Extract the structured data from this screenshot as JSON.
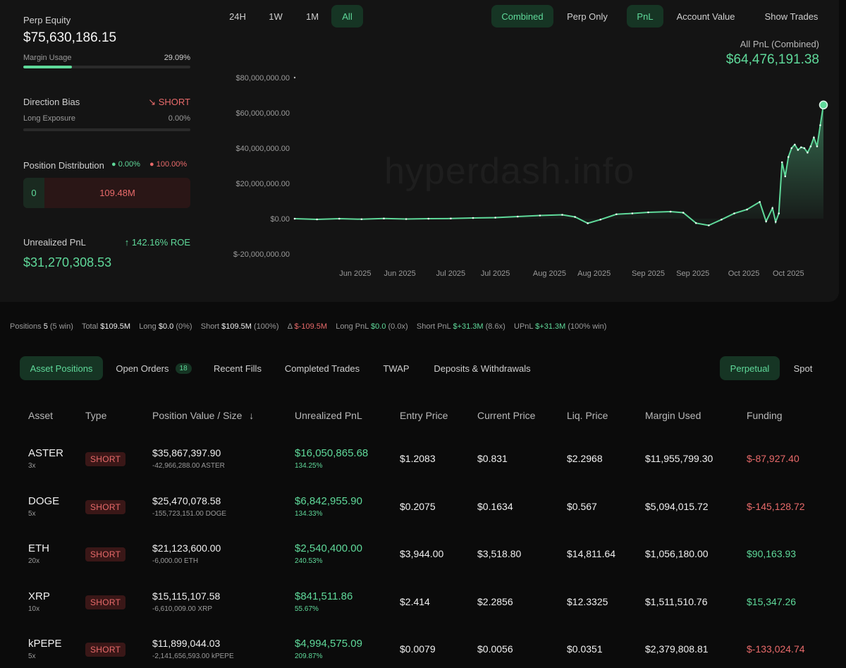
{
  "left": {
    "perp_equity_label": "Perp Equity",
    "perp_equity_value": "$75,630,186.15",
    "margin_usage_label": "Margin Usage",
    "margin_usage_value": "29.09%",
    "margin_usage_fraction": 0.2909,
    "direction_bias_label": "Direction Bias",
    "direction_bias_value": "SHORT",
    "long_exposure_label": "Long Exposure",
    "long_exposure_value": "0.00%",
    "long_exposure_fraction": 0.0,
    "position_distribution_label": "Position Distribution",
    "dist_long_pct": "0.00%",
    "dist_short_pct": "100.00%",
    "dist_long_value": "0",
    "dist_short_value": "109.48M",
    "unrealized_pnl_label": "Unrealized PnL",
    "roe": "142.16% ROE",
    "unrealized_pnl_value": "$31,270,308.53"
  },
  "chart_tabs": {
    "range": [
      "24H",
      "1W",
      "1M",
      "All"
    ],
    "range_active": "All",
    "mode": [
      "Combined",
      "Perp Only"
    ],
    "mode_active": "Combined",
    "metric": [
      "PnL",
      "Account Value"
    ],
    "metric_active": "PnL",
    "show_trades": "Show Trades"
  },
  "chart_header": {
    "label": "All PnL (Combined)",
    "value": "$64,476,191.38"
  },
  "watermark": "hyperdash.info",
  "chart_data": {
    "type": "area",
    "title": "",
    "xlabel": "",
    "ylabel": "",
    "ylim": [
      -20000000,
      80000000
    ],
    "y_ticks": [
      "$80,000,000.00",
      "$60,000,000.00",
      "$40,000,000.00",
      "$20,000,000.00",
      "$0.00",
      "$-20,000,000.00"
    ],
    "y_tick_values": [
      80000000,
      60000000,
      40000000,
      20000000,
      0,
      -20000000
    ],
    "x_tick_labels": [
      "Jun 2025",
      "Jun 2025",
      "Jul 2025",
      "Jul 2025",
      "Aug 2025",
      "Aug 2025",
      "Sep 2025",
      "Sep 2025",
      "Oct 2025",
      "Oct 2025"
    ],
    "x_tick_dates": [
      "2025-06-01",
      "2025-06-15",
      "2025-07-01",
      "2025-07-15",
      "2025-08-01",
      "2025-08-15",
      "2025-09-01",
      "2025-09-15",
      "2025-10-01",
      "2025-10-15"
    ],
    "x_range": [
      "2025-05-13",
      "2025-10-26"
    ],
    "grid": false,
    "color": "#5fd99a",
    "series": [
      {
        "x": [
          "2025-05-13",
          "2025-05-20",
          "2025-05-27",
          "2025-06-03",
          "2025-06-10",
          "2025-06-17",
          "2025-06-24",
          "2025-07-01",
          "2025-07-08",
          "2025-07-15",
          "2025-07-22",
          "2025-07-29",
          "2025-08-05",
          "2025-08-09",
          "2025-08-13",
          "2025-08-17",
          "2025-08-22",
          "2025-08-27",
          "2025-09-01",
          "2025-09-08",
          "2025-09-12",
          "2025-09-16",
          "2025-09-20",
          "2025-09-24",
          "2025-09-28",
          "2025-10-02",
          "2025-10-06",
          "2025-10-08",
          "2025-10-10",
          "2025-10-11",
          "2025-10-12",
          "2025-10-13",
          "2025-10-14",
          "2025-10-15",
          "2025-10-16",
          "2025-10-17",
          "2025-10-18",
          "2025-10-19",
          "2025-10-20",
          "2025-10-21",
          "2025-10-22",
          "2025-10-23",
          "2025-10-24",
          "2025-10-25",
          "2025-10-26"
        ],
        "y": [
          0,
          -400000,
          0,
          -300000,
          100000,
          -200000,
          0,
          100000,
          400000,
          600000,
          1200000,
          1800000,
          2200000,
          1000000,
          -2600000,
          -500000,
          2500000,
          3000000,
          3600000,
          4000000,
          3400000,
          -2500000,
          -3800000,
          -500000,
          3000000,
          5200000,
          9500000,
          -1500000,
          6000000,
          -1800000,
          3000000,
          32000000,
          24000000,
          35000000,
          40000000,
          42000000,
          39000000,
          40500000,
          40000000,
          37500000,
          41000000,
          46000000,
          41000000,
          53000000,
          64476191
        ]
      }
    ]
  },
  "summary": {
    "positions_label": "Positions",
    "positions_value": "5",
    "positions_note": "(5 win)",
    "total_label": "Total",
    "total_value": "$109.5M",
    "long_label": "Long",
    "long_value": "$0.0",
    "long_note": "(0%)",
    "short_label": "Short",
    "short_value": "$109.5M",
    "short_note": "(100%)",
    "delta_label": "Δ",
    "delta_value": "$-109.5M",
    "long_pnl_label": "Long PnL",
    "long_pnl_value": "$0.0",
    "long_pnl_note": "(0.0x)",
    "short_pnl_label": "Short PnL",
    "short_pnl_value": "$+31.3M",
    "short_pnl_note": "(8.6x)",
    "upnl_label": "UPnL",
    "upnl_value": "$+31.3M",
    "upnl_note": "(100% win)"
  },
  "tabs": {
    "asset_positions": "Asset Positions",
    "open_orders": "Open Orders",
    "open_orders_count": "18",
    "recent_fills": "Recent Fills",
    "completed_trades": "Completed Trades",
    "twap": "TWAP",
    "deposits": "Deposits & Withdrawals",
    "perpetual": "Perpetual",
    "spot": "Spot"
  },
  "table": {
    "headers": {
      "asset": "Asset",
      "type": "Type",
      "position": "Position Value / Size",
      "upnl": "Unrealized PnL",
      "entry": "Entry Price",
      "current": "Current Price",
      "liq": "Liq. Price",
      "margin": "Margin Used",
      "funding": "Funding"
    },
    "rows": [
      {
        "asset": "ASTER",
        "lev": "3x",
        "type": "SHORT",
        "value": "$35,867,397.90",
        "size": "-42,966,288.00 ASTER",
        "upnl": "$16,050,865.68",
        "upnl_pct": "134.25%",
        "entry": "$1.2083",
        "current": "$0.831",
        "liq": "$2.2968",
        "margin": "$11,955,799.30",
        "funding": "$-87,927.40",
        "funding_positive": false
      },
      {
        "asset": "DOGE",
        "lev": "5x",
        "type": "SHORT",
        "value": "$25,470,078.58",
        "size": "-155,723,151.00 DOGE",
        "upnl": "$6,842,955.90",
        "upnl_pct": "134.33%",
        "entry": "$0.2075",
        "current": "$0.1634",
        "liq": "$0.567",
        "margin": "$5,094,015.72",
        "funding": "$-145,128.72",
        "funding_positive": false
      },
      {
        "asset": "ETH",
        "lev": "20x",
        "type": "SHORT",
        "value": "$21,123,600.00",
        "size": "-6,000.00 ETH",
        "upnl": "$2,540,400.00",
        "upnl_pct": "240.53%",
        "entry": "$3,944.00",
        "current": "$3,518.80",
        "liq": "$14,811.64",
        "margin": "$1,056,180.00",
        "funding": "$90,163.93",
        "funding_positive": true
      },
      {
        "asset": "XRP",
        "lev": "10x",
        "type": "SHORT",
        "value": "$15,115,107.58",
        "size": "-6,610,009.00 XRP",
        "upnl": "$841,511.86",
        "upnl_pct": "55.67%",
        "entry": "$2.414",
        "current": "$2.2856",
        "liq": "$12.3325",
        "margin": "$1,511,510.76",
        "funding": "$15,347.26",
        "funding_positive": true
      },
      {
        "asset": "kPEPE",
        "lev": "5x",
        "type": "SHORT",
        "value": "$11,899,044.03",
        "size": "-2,141,656,593.00 kPEPE",
        "upnl": "$4,994,575.09",
        "upnl_pct": "209.87%",
        "entry": "$0.0079",
        "current": "$0.0056",
        "liq": "$0.0351",
        "margin": "$2,379,808.81",
        "funding": "$-133,024.74",
        "funding_positive": false
      }
    ]
  }
}
